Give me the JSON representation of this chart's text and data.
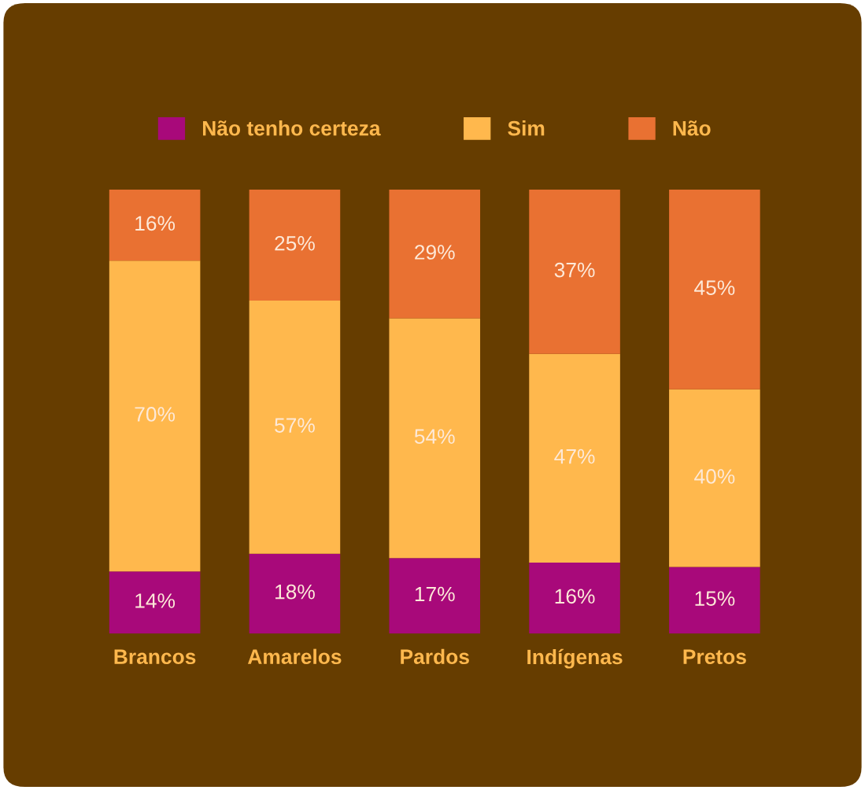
{
  "chart_data": {
    "type": "bar",
    "stacked": true,
    "legend": "top",
    "grid": false,
    "categories": [
      "Brancos",
      "Amarelos",
      "Pardos",
      "Indígenas",
      "Pretos"
    ],
    "series": [
      {
        "name": "Não tenho certeza",
        "color": "#a8097a",
        "values": [
          14,
          18,
          17,
          16,
          15
        ],
        "value_labels": [
          "14%",
          "18%",
          "17%",
          "16%",
          "15%"
        ]
      },
      {
        "name": "Sim",
        "color": "#ffb84d",
        "values": [
          70,
          57,
          54,
          47,
          40
        ],
        "value_labels": [
          "70%",
          "57%",
          "54%",
          "47%",
          "40%"
        ]
      },
      {
        "name": "Não",
        "color": "#e97132",
        "values": [
          16,
          25,
          29,
          37,
          45
        ],
        "value_labels": [
          "16%",
          "25%",
          "29%",
          "37%",
          "45%"
        ]
      }
    ]
  }
}
